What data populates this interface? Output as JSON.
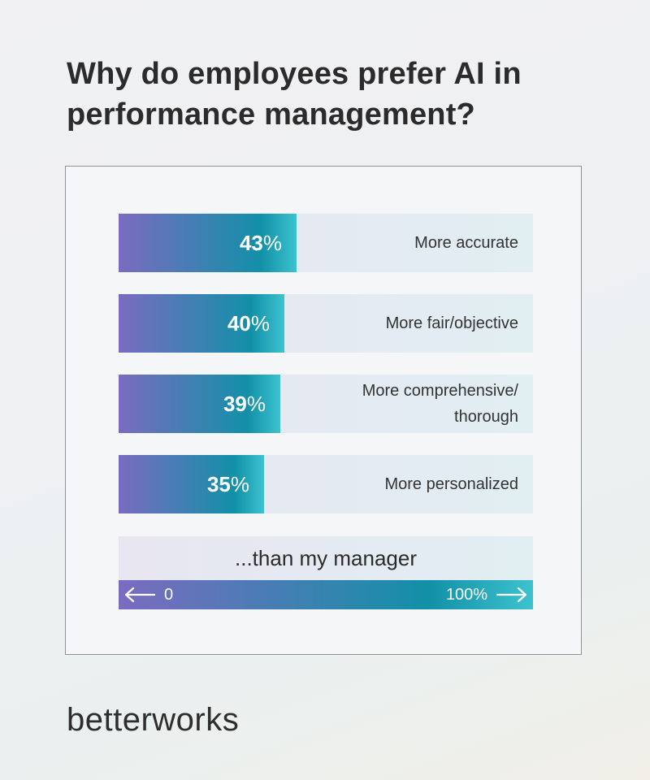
{
  "title_lines": [
    "Why do employees prefer AI in",
    "performance management?"
  ],
  "chart_data": {
    "type": "bar",
    "orientation": "horizontal",
    "categories": [
      "More accurate",
      "More fair/objective",
      "More comprehensive/\nthorough",
      "More personalized"
    ],
    "values": [
      43,
      40,
      39,
      35
    ],
    "value_labels": [
      "43",
      "40",
      "39",
      "35"
    ],
    "value_suffix": "%",
    "xlim": [
      0,
      100
    ],
    "grid": false
  },
  "footer_label": "...than my manager",
  "axis": {
    "min_label": "0",
    "max_label": "100%"
  },
  "brand": "betterworks",
  "colors": {
    "gradient_start": "#7b6bc0",
    "gradient_mid": "#1290a8",
    "gradient_end": "#3cc3cf"
  }
}
